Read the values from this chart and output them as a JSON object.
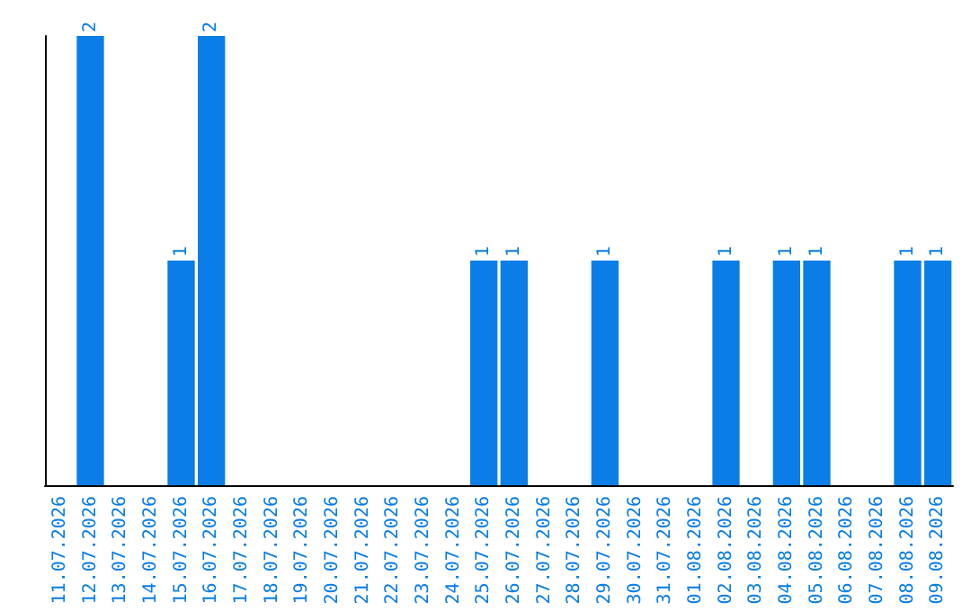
{
  "chart_data": {
    "type": "bar",
    "categories": [
      "11.07.2026",
      "12.07.2026",
      "13.07.2026",
      "14.07.2026",
      "15.07.2026",
      "16.07.2026",
      "17.07.2026",
      "18.07.2026",
      "19.07.2026",
      "20.07.2026",
      "21.07.2026",
      "22.07.2026",
      "23.07.2026",
      "24.07.2026",
      "25.07.2026",
      "26.07.2026",
      "27.07.2026",
      "28.07.2026",
      "29.07.2026",
      "30.07.2026",
      "31.07.2026",
      "01.08.2026",
      "02.08.2026",
      "03.08.2026",
      "04.08.2026",
      "05.08.2026",
      "06.08.2026",
      "07.08.2026",
      "08.08.2026",
      "09.08.2026"
    ],
    "values": [
      null,
      2,
      null,
      null,
      1,
      2,
      null,
      null,
      null,
      null,
      null,
      null,
      null,
      null,
      1,
      1,
      null,
      null,
      1,
      null,
      null,
      null,
      1,
      null,
      1,
      1,
      null,
      null,
      1,
      1
    ],
    "color": "#0a7de6",
    "data_labels": true
  }
}
